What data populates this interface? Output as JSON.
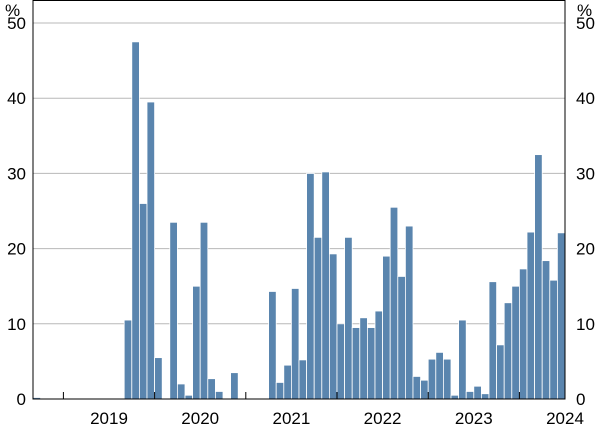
{
  "chart_data": {
    "type": "bar",
    "unit": "%",
    "ylim": [
      0,
      53
    ],
    "yticks": [
      0,
      10,
      20,
      30,
      40,
      50
    ],
    "x_start": "2018-09",
    "bar_color": "#5a85ae",
    "gridlines": true,
    "year_labels": [
      "2019",
      "2020",
      "2021",
      "2022",
      "2023",
      "2024"
    ],
    "values": [
      0.2,
      0,
      0,
      0,
      0,
      0,
      0,
      0,
      0,
      0,
      0,
      0,
      10.5,
      47.5,
      26,
      39.5,
      5.5,
      0,
      23.5,
      2,
      0.5,
      15,
      23.5,
      2.7,
      1,
      0,
      3.5,
      0,
      0,
      0,
      0,
      14.3,
      2.2,
      4.5,
      14.7,
      5.2,
      30,
      21.5,
      30.2,
      19.3,
      10,
      21.5,
      9.5,
      10.8,
      9.5,
      11.7,
      19,
      25.5,
      16.3,
      23,
      3,
      2.5,
      5.3,
      6.2,
      5.3,
      0.5,
      10.5,
      1,
      1.7,
      0.7,
      15.6,
      7.2,
      12.8,
      15,
      17.3,
      22.2,
      32.5,
      18.4,
      15.8,
      22.1
    ]
  }
}
